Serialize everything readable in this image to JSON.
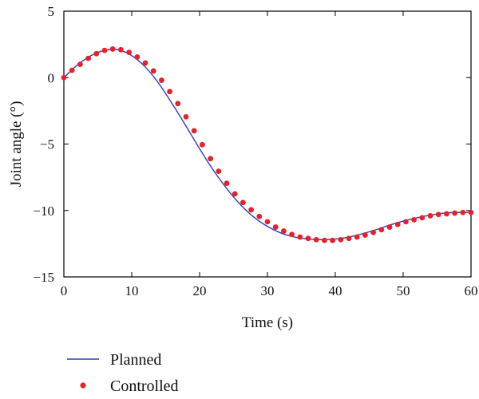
{
  "chart_data": {
    "type": "line",
    "title": "",
    "xlabel": "Time (s)",
    "ylabel": "Joint angle (°)",
    "xlim": [
      0,
      60
    ],
    "ylim": [
      -15,
      5
    ],
    "xticks": [
      0,
      10,
      20,
      30,
      40,
      50,
      60
    ],
    "yticks": [
      5,
      0,
      -5,
      -10,
      -15
    ],
    "xtick_labels": [
      "0",
      "10",
      "20",
      "30",
      "40",
      "50",
      "60"
    ],
    "ytick_labels": [
      "5",
      "0",
      "−5",
      "−10",
      "−15"
    ],
    "grid": false,
    "legend": {
      "placement": "below",
      "entries": [
        "Planned",
        "Controlled"
      ]
    },
    "series": [
      {
        "name": "Planned",
        "style": "line",
        "color": "#2a3fbf",
        "x": [
          0,
          2,
          4,
          6,
          8,
          10,
          12,
          14,
          16,
          18,
          20,
          22,
          24,
          26,
          28,
          30,
          32,
          34,
          36,
          38,
          40,
          42,
          44,
          46,
          48,
          50,
          52,
          54,
          56,
          58,
          60
        ],
        "y": [
          0,
          0.95,
          1.65,
          2.05,
          2.1,
          1.65,
          0.8,
          -0.45,
          -2.0,
          -3.65,
          -5.35,
          -6.95,
          -8.35,
          -9.55,
          -10.5,
          -11.2,
          -11.7,
          -12.0,
          -12.15,
          -12.2,
          -12.15,
          -12.0,
          -11.75,
          -11.45,
          -11.1,
          -10.8,
          -10.55,
          -10.35,
          -10.2,
          -10.15,
          -10.15
        ]
      },
      {
        "name": "Controlled",
        "style": "markers",
        "color": "#e8202a",
        "x": [
          0,
          1.2,
          2.4,
          3.6,
          4.8,
          6.0,
          7.2,
          8.4,
          9.6,
          10.8,
          12.0,
          13.2,
          14.4,
          15.6,
          16.8,
          18.0,
          19.2,
          20.4,
          21.6,
          22.8,
          24.0,
          25.2,
          26.4,
          27.6,
          28.8,
          30.0,
          31.2,
          32.4,
          33.6,
          34.8,
          36.0,
          37.2,
          38.4,
          39.6,
          40.8,
          42.0,
          43.2,
          44.4,
          45.6,
          46.8,
          48.0,
          49.2,
          50.4,
          51.6,
          52.8,
          54.0,
          55.2,
          56.4,
          57.6,
          58.8,
          60.0
        ],
        "y": [
          0,
          0.55,
          1.0,
          1.45,
          1.8,
          2.05,
          2.15,
          2.1,
          1.9,
          1.55,
          1.1,
          0.5,
          -0.2,
          -1.05,
          -1.95,
          -2.95,
          -4.0,
          -5.05,
          -6.1,
          -7.05,
          -7.95,
          -8.75,
          -9.4,
          -9.95,
          -10.45,
          -10.85,
          -11.25,
          -11.55,
          -11.8,
          -12.0,
          -12.1,
          -12.2,
          -12.25,
          -12.25,
          -12.2,
          -12.1,
          -12.0,
          -11.85,
          -11.65,
          -11.45,
          -11.25,
          -11.05,
          -10.85,
          -10.7,
          -10.55,
          -10.4,
          -10.3,
          -10.25,
          -10.2,
          -10.15,
          -10.15
        ]
      }
    ]
  }
}
